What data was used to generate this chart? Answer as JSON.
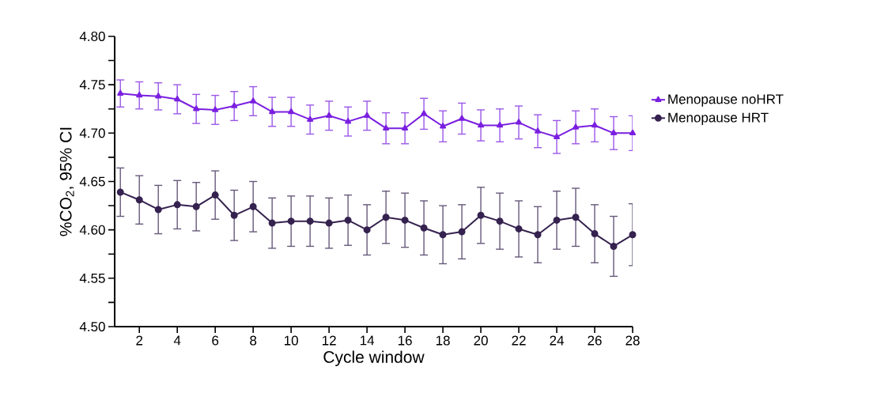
{
  "chart_data": {
    "type": "line",
    "xlabel": "Cycle window",
    "ylabel": "%CO$_{2}$, 95% CI",
    "x": [
      1,
      2,
      3,
      4,
      5,
      6,
      7,
      8,
      9,
      10,
      11,
      12,
      13,
      14,
      15,
      16,
      17,
      18,
      19,
      20,
      21,
      22,
      23,
      24,
      25,
      26,
      27,
      28
    ],
    "series": [
      {
        "name": "Menopause noHRT",
        "color": "#7a1fe0",
        "marker": "triangle",
        "values": [
          4.741,
          4.739,
          4.738,
          4.735,
          4.725,
          4.724,
          4.728,
          4.733,
          4.722,
          4.722,
          4.714,
          4.718,
          4.712,
          4.718,
          4.705,
          4.705,
          4.72,
          4.707,
          4.715,
          4.708,
          4.708,
          4.711,
          4.702,
          4.696,
          4.706,
          4.708,
          4.7,
          4.7
        ],
        "errors": [
          0.014,
          0.014,
          0.014,
          0.015,
          0.015,
          0.015,
          0.015,
          0.015,
          0.015,
          0.015,
          0.015,
          0.015,
          0.015,
          0.015,
          0.016,
          0.016,
          0.016,
          0.016,
          0.016,
          0.016,
          0.017,
          0.017,
          0.017,
          0.017,
          0.017,
          0.017,
          0.017,
          0.018
        ]
      },
      {
        "name": "Menopause HRT",
        "color": "#35224f",
        "marker": "circle",
        "values": [
          4.639,
          4.631,
          4.621,
          4.626,
          4.624,
          4.636,
          4.615,
          4.624,
          4.607,
          4.609,
          4.609,
          4.607,
          4.61,
          4.6,
          4.613,
          4.61,
          4.602,
          4.595,
          4.598,
          4.615,
          4.609,
          4.601,
          4.595,
          4.61,
          4.613,
          4.596,
          4.583,
          4.595
        ],
        "errors": [
          0.025,
          0.025,
          0.025,
          0.025,
          0.025,
          0.025,
          0.026,
          0.026,
          0.026,
          0.026,
          0.026,
          0.026,
          0.026,
          0.026,
          0.027,
          0.028,
          0.028,
          0.03,
          0.028,
          0.029,
          0.029,
          0.029,
          0.029,
          0.03,
          0.03,
          0.03,
          0.031,
          0.032
        ]
      }
    ],
    "xlim": [
      0.7,
      28
    ],
    "xticks": [
      2,
      4,
      6,
      8,
      10,
      12,
      14,
      16,
      18,
      20,
      22,
      24,
      26,
      28
    ],
    "ylim": [
      4.5,
      4.8
    ],
    "yticks": [
      {
        "value": 4.5,
        "label": "4.50"
      },
      {
        "value": 4.525,
        "label": null
      },
      {
        "value": 4.55,
        "label": "4.55"
      },
      {
        "value": 4.575,
        "label": null
      },
      {
        "value": 4.6,
        "label": "4.60"
      },
      {
        "value": 4.625,
        "label": null
      },
      {
        "value": 4.65,
        "label": "4.65"
      },
      {
        "value": 4.675,
        "label": null
      },
      {
        "value": 4.7,
        "label": "4.70"
      },
      {
        "value": 4.725,
        "label": null
      },
      {
        "value": 4.75,
        "label": "4.75"
      },
      {
        "value": 4.775,
        "label": null
      },
      {
        "value": 4.8,
        "label": "4.80"
      }
    ],
    "grid": false,
    "legend": "right",
    "line_style": "solid"
  }
}
